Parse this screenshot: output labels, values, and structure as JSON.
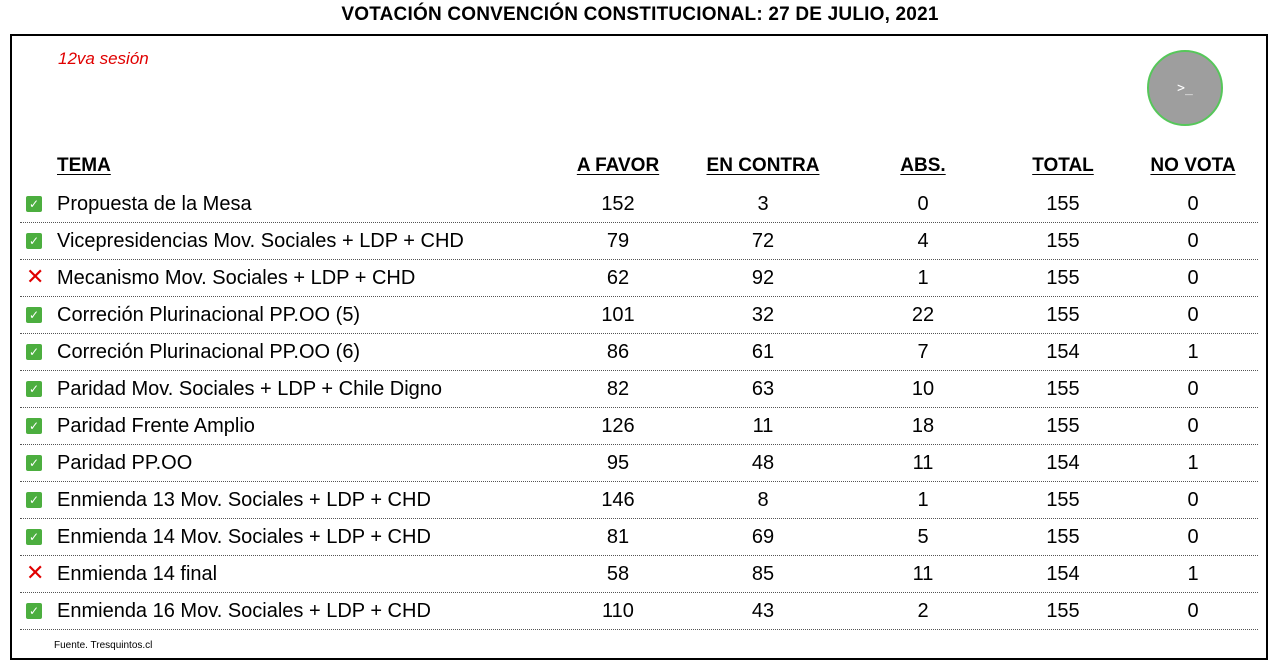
{
  "title": "VOTACIÓN CONVENCIÓN CONSTITUCIONAL: 27 DE JULIO, 2021",
  "session": "12va sesión",
  "terminal_button": {
    "icon": "terminal-icon",
    "glyph": ">_"
  },
  "headers": {
    "tema": "TEMA",
    "a_favor": "A FAVOR",
    "en_contra": "EN CONTRA",
    "abs": "ABS.",
    "total": "TOTAL",
    "no_vota": "NO VOTA"
  },
  "colors": {
    "pass": "#4cae3f",
    "fail": "#e00000",
    "session": "#e00000"
  },
  "rows": [
    {
      "status": "pass",
      "mark": "✓",
      "tema": "Propuesta de la Mesa",
      "a_favor": "152",
      "en_contra": "3",
      "abs": "0",
      "total": "155",
      "no_vota": "0"
    },
    {
      "status": "pass",
      "mark": "✓",
      "tema": "Vicepresidencias Mov. Sociales + LDP + CHD",
      "a_favor": "79",
      "en_contra": "72",
      "abs": "4",
      "total": "155",
      "no_vota": "0"
    },
    {
      "status": "fail",
      "mark": "✕",
      "tema": "Mecanismo Mov. Sociales + LDP + CHD",
      "a_favor": "62",
      "en_contra": "92",
      "abs": "1",
      "total": "155",
      "no_vota": "0"
    },
    {
      "status": "pass",
      "mark": "✓",
      "tema": "Correción Plurinacional PP.OO (5)",
      "a_favor": "101",
      "en_contra": "32",
      "abs": "22",
      "total": "155",
      "no_vota": "0"
    },
    {
      "status": "pass",
      "mark": "✓",
      "tema": "Correción Plurinacional PP.OO (6)",
      "a_favor": "86",
      "en_contra": "61",
      "abs": "7",
      "total": "154",
      "no_vota": "1"
    },
    {
      "status": "pass",
      "mark": "✓",
      "tema": "Paridad Mov. Sociales + LDP + Chile Digno",
      "a_favor": "82",
      "en_contra": "63",
      "abs": "10",
      "total": "155",
      "no_vota": "0"
    },
    {
      "status": "pass",
      "mark": "✓",
      "tema": "Paridad Frente Amplio",
      "a_favor": "126",
      "en_contra": "11",
      "abs": "18",
      "total": "155",
      "no_vota": "0"
    },
    {
      "status": "pass",
      "mark": "✓",
      "tema": "Paridad PP.OO",
      "a_favor": "95",
      "en_contra": "48",
      "abs": "11",
      "total": "154",
      "no_vota": "1"
    },
    {
      "status": "pass",
      "mark": "✓",
      "tema": "Enmienda 13 Mov. Sociales + LDP + CHD",
      "a_favor": "146",
      "en_contra": "8",
      "abs": "1",
      "total": "155",
      "no_vota": "0"
    },
    {
      "status": "pass",
      "mark": "✓",
      "tema": "Enmienda 14 Mov. Sociales + LDP + CHD",
      "a_favor": "81",
      "en_contra": "69",
      "abs": "5",
      "total": "155",
      "no_vota": "0"
    },
    {
      "status": "fail",
      "mark": "✕",
      "tema": "Enmienda 14 final",
      "a_favor": "58",
      "en_contra": "85",
      "abs": "11",
      "total": "154",
      "no_vota": "1"
    },
    {
      "status": "pass",
      "mark": "✓",
      "tema": "Enmienda 16 Mov. Sociales + LDP + CHD",
      "a_favor": "110",
      "en_contra": "43",
      "abs": "2",
      "total": "155",
      "no_vota": "0"
    }
  ],
  "source": "Fuente. Tresquintos.cl"
}
